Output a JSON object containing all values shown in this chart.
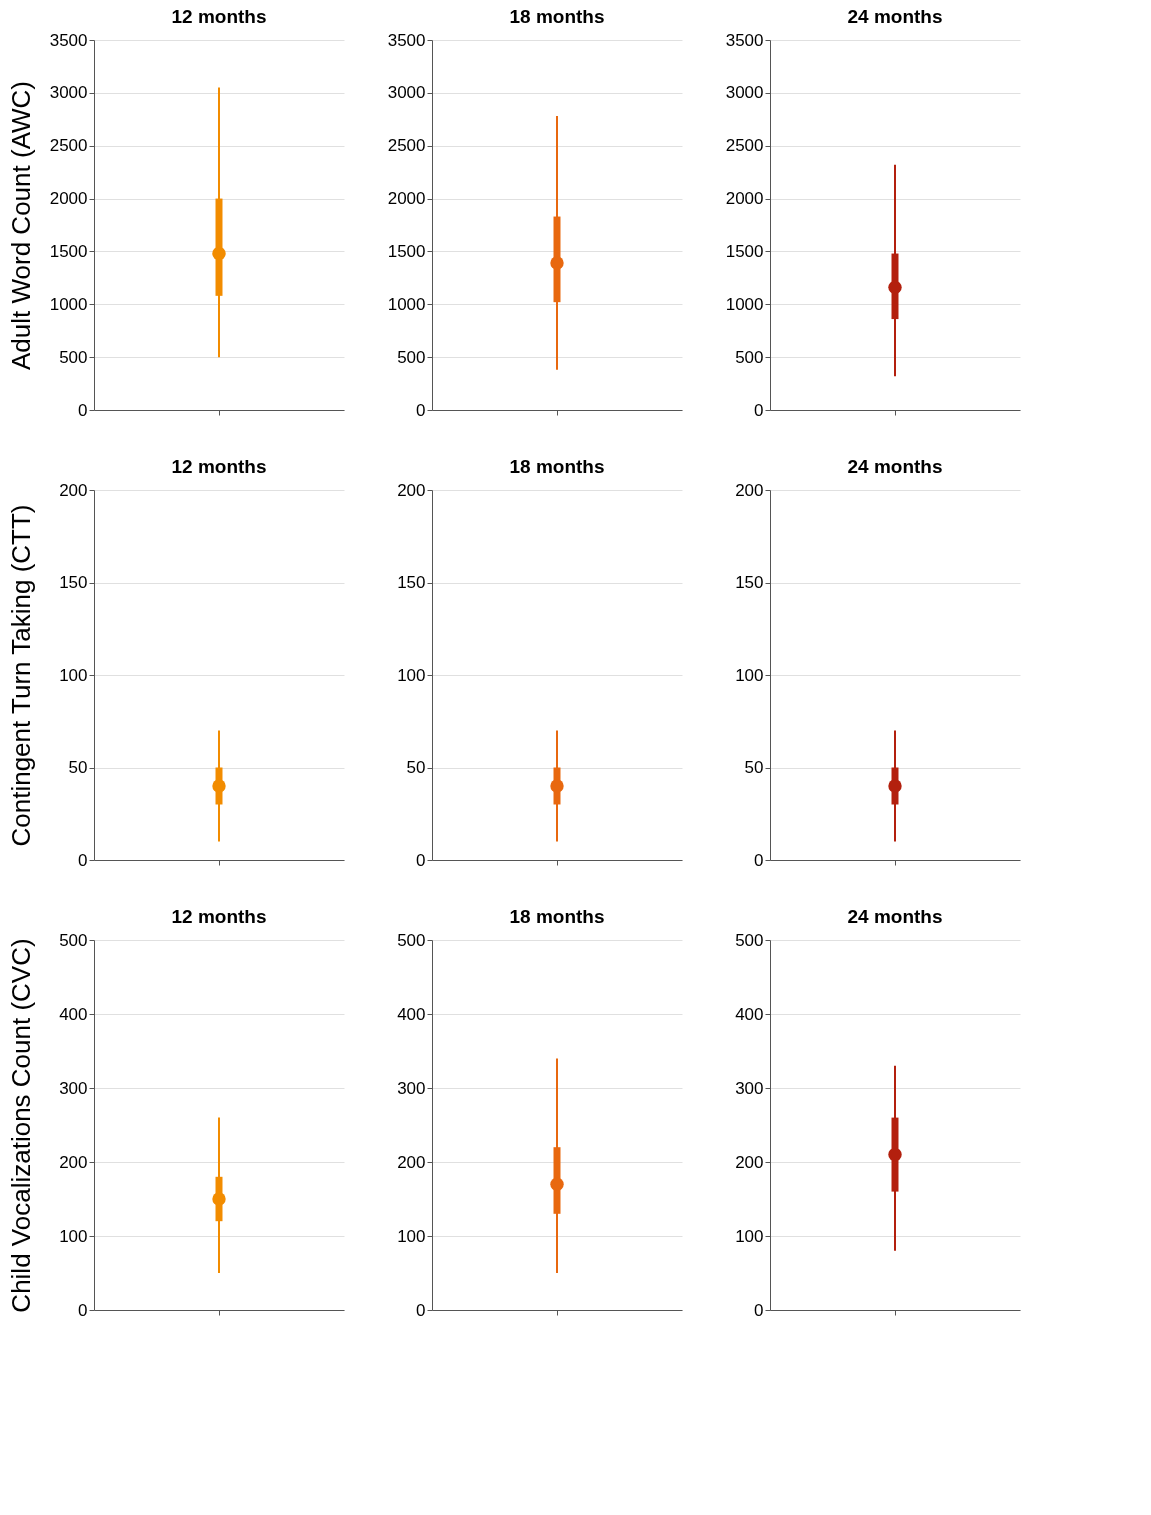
{
  "chart_data": [
    {
      "type": "box",
      "title": "12 months",
      "ylabel": "Adult Word Count (AWC)",
      "categories": [
        null
      ],
      "color": "#f28c00",
      "boxes": [
        {
          "low": 500,
          "q1": 1080,
          "median": 1480,
          "q3": 2000,
          "high": 3050
        }
      ],
      "ylim": [
        0,
        3500
      ],
      "yticks": [
        0,
        500,
        1000,
        1500,
        2000,
        2500,
        3000,
        3500
      ],
      "grid": "y",
      "tick_labels": "y"
    },
    {
      "type": "box",
      "title": "18 months",
      "categories": [
        null
      ],
      "color": "#e8680f",
      "boxes": [
        {
          "low": 380,
          "q1": 1020,
          "median": 1390,
          "q3": 1830,
          "high": 2780
        }
      ],
      "ylim": [
        0,
        3500
      ],
      "yticks": [
        0,
        500,
        1000,
        1500,
        2000,
        2500,
        3000,
        3500
      ],
      "grid": "y",
      "tick_labels": "y"
    },
    {
      "type": "box",
      "title": "24 months",
      "categories": [
        null
      ],
      "color": "#b3200e",
      "boxes": [
        {
          "low": 320,
          "q1": 860,
          "median": 1160,
          "q3": 1480,
          "high": 2320
        }
      ],
      "ylim": [
        0,
        3500
      ],
      "yticks": [
        0,
        500,
        1000,
        1500,
        2000,
        2500,
        3000,
        3500
      ],
      "grid": "y",
      "tick_labels": "y"
    },
    {
      "type": "box",
      "title": "12 months",
      "ylabel": "Contingent Turn Taking (CTT)",
      "categories": [
        null
      ],
      "color": "#f28c00",
      "boxes": [
        {
          "low": 10,
          "q1": 30,
          "median": 40,
          "q3": 50,
          "high": 70
        }
      ],
      "ylim": [
        0,
        200
      ],
      "yticks": [
        0,
        50,
        100,
        150,
        200
      ],
      "grid": "y",
      "tick_labels": "y"
    },
    {
      "type": "box",
      "title": "18 months",
      "categories": [
        null
      ],
      "color": "#e8680f",
      "boxes": [
        {
          "low": 10,
          "q1": 30,
          "median": 40,
          "q3": 50,
          "high": 70
        }
      ],
      "ylim": [
        0,
        200
      ],
      "yticks": [
        0,
        50,
        100,
        150,
        200
      ],
      "grid": "y",
      "tick_labels": "y"
    },
    {
      "type": "box",
      "title": "24 months",
      "categories": [
        null
      ],
      "color": "#b3200e",
      "boxes": [
        {
          "low": 10,
          "q1": 30,
          "median": 40,
          "q3": 50,
          "high": 70
        }
      ],
      "ylim": [
        0,
        200
      ],
      "yticks": [
        0,
        50,
        100,
        150,
        200
      ],
      "grid": "y",
      "tick_labels": "y"
    },
    {
      "type": "box",
      "title": "12 months",
      "ylabel": "Child Vocalizations Count (CVC)",
      "categories": [
        null
      ],
      "color": "#f28c00",
      "boxes": [
        {
          "low": 50,
          "q1": 120,
          "median": 150,
          "q3": 180,
          "high": 260
        }
      ],
      "ylim": [
        0,
        500
      ],
      "yticks": [
        0,
        100,
        200,
        300,
        400,
        500
      ],
      "grid": "y",
      "tick_labels": "y"
    },
    {
      "type": "box",
      "title": "18 months",
      "categories": [
        null
      ],
      "color": "#e8680f",
      "boxes": [
        {
          "low": 50,
          "q1": 130,
          "median": 170,
          "q3": 220,
          "high": 340
        }
      ],
      "ylim": [
        0,
        500
      ],
      "yticks": [
        0,
        100,
        200,
        300,
        400,
        500
      ],
      "grid": "y",
      "tick_labels": "y"
    },
    {
      "type": "box",
      "title": "24 months",
      "categories": [
        null
      ],
      "color": "#b3200e",
      "boxes": [
        {
          "low": 80,
          "q1": 160,
          "median": 210,
          "q3": 260,
          "high": 330
        }
      ],
      "ylim": [
        0,
        500
      ],
      "yticks": [
        0,
        100,
        200,
        300,
        400,
        500
      ],
      "grid": "y",
      "tick_labels": "y"
    }
  ]
}
